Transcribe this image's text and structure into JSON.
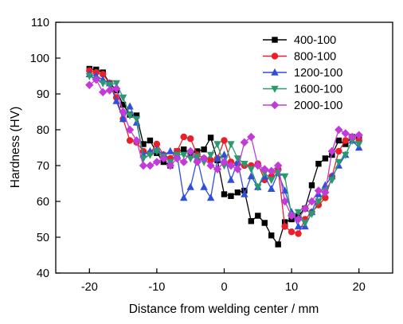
{
  "chart_data": {
    "type": "line",
    "title": "",
    "xlabel": "Distance from welding center / mm",
    "ylabel": "Hardness (HV)",
    "xlim": [
      -25,
      25
    ],
    "ylim": [
      40,
      110
    ],
    "xticks": [
      -20,
      -10,
      0,
      10,
      20
    ],
    "yticks": [
      40,
      50,
      60,
      70,
      80,
      90,
      100,
      110
    ],
    "x_tick_labels": [
      "-20",
      "-10",
      "0",
      "10",
      "20"
    ],
    "y_tick_labels": [
      "40",
      "50",
      "60",
      "70",
      "80",
      "90",
      "100",
      "110"
    ],
    "grid": false,
    "legend_position": "top-right",
    "series": [
      {
        "name": "400-100",
        "color": "#000000",
        "marker": "square",
        "points": [
          [
            -20,
            97
          ],
          [
            -19,
            96.8
          ],
          [
            -18,
            96
          ],
          [
            -17,
            93
          ],
          [
            -16,
            91
          ],
          [
            -15,
            87
          ],
          [
            -14,
            84.2
          ],
          [
            -13,
            84
          ],
          [
            -12,
            76
          ],
          [
            -11,
            77
          ],
          [
            -10,
            73.5
          ],
          [
            -9,
            71
          ],
          [
            -8,
            70
          ],
          [
            -7,
            74
          ],
          [
            -6,
            74.5
          ],
          [
            -5,
            73.5
          ],
          [
            -4,
            74
          ],
          [
            -3,
            74.5
          ],
          [
            -2,
            77.8
          ],
          [
            -1,
            71.5
          ],
          [
            0,
            62
          ],
          [
            1,
            61.5
          ],
          [
            2,
            62.5
          ],
          [
            3,
            63
          ],
          [
            4,
            54.5
          ],
          [
            5,
            56
          ],
          [
            6,
            54
          ],
          [
            7,
            50.5
          ],
          [
            8,
            48
          ],
          [
            9,
            54.2
          ],
          [
            10,
            55
          ],
          [
            11,
            56
          ],
          [
            12,
            58
          ],
          [
            13,
            64.5
          ],
          [
            14,
            70.5
          ],
          [
            15,
            72
          ],
          [
            16,
            73
          ],
          [
            17,
            77
          ],
          [
            18,
            76
          ],
          [
            19,
            78
          ],
          [
            20,
            78
          ]
        ]
      },
      {
        "name": "800-100",
        "color": "#e8202a",
        "marker": "circle",
        "points": [
          [
            -20,
            96.5
          ],
          [
            -19,
            96
          ],
          [
            -18,
            95.5
          ],
          [
            -17,
            93
          ],
          [
            -16,
            89
          ],
          [
            -15,
            83
          ],
          [
            -14,
            77
          ],
          [
            -13,
            76.5
          ],
          [
            -12,
            74
          ],
          [
            -11,
            73.5
          ],
          [
            -10,
            76
          ],
          [
            -9,
            73
          ],
          [
            -8,
            72
          ],
          [
            -7,
            74
          ],
          [
            -6,
            78
          ],
          [
            -5,
            77.5
          ],
          [
            -4,
            73
          ],
          [
            -3,
            72
          ],
          [
            -2,
            71.5
          ],
          [
            -1,
            72
          ],
          [
            0,
            77
          ],
          [
            1,
            71
          ],
          [
            2,
            70.5
          ],
          [
            3,
            70
          ],
          [
            4,
            70
          ],
          [
            5,
            70.5
          ],
          [
            6,
            66
          ],
          [
            7,
            67
          ],
          [
            8,
            69
          ],
          [
            9,
            53
          ],
          [
            10,
            51.5
          ],
          [
            11,
            51
          ],
          [
            12,
            55
          ],
          [
            13,
            57
          ],
          [
            14,
            59
          ],
          [
            15,
            61
          ],
          [
            16,
            67
          ],
          [
            17,
            74
          ],
          [
            18,
            77
          ],
          [
            19,
            78
          ],
          [
            20,
            77
          ]
        ]
      },
      {
        "name": "1200-100",
        "color": "#2f4fd8",
        "marker": "triangle",
        "points": [
          [
            -20,
            95.5
          ],
          [
            -19,
            95
          ],
          [
            -18,
            94
          ],
          [
            -17,
            93
          ],
          [
            -16,
            88
          ],
          [
            -15,
            83
          ],
          [
            -14,
            86.5
          ],
          [
            -13,
            82
          ],
          [
            -12,
            73
          ],
          [
            -11,
            74
          ],
          [
            -10,
            74.5
          ],
          [
            -9,
            73
          ],
          [
            -8,
            74
          ],
          [
            -7,
            73
          ],
          [
            -6,
            61
          ],
          [
            -5,
            64
          ],
          [
            -4,
            72
          ],
          [
            -3,
            64
          ],
          [
            -2,
            61
          ],
          [
            -1,
            72
          ],
          [
            0,
            73
          ],
          [
            1,
            66
          ],
          [
            2,
            71
          ],
          [
            3,
            62
          ],
          [
            4,
            67
          ],
          [
            5,
            64
          ],
          [
            6,
            67
          ],
          [
            7,
            63.5
          ],
          [
            8,
            68
          ],
          [
            9,
            63
          ],
          [
            10,
            57
          ],
          [
            11,
            53
          ],
          [
            12,
            53
          ],
          [
            13,
            57
          ],
          [
            14,
            62
          ],
          [
            15,
            64.5
          ],
          [
            16,
            67
          ],
          [
            17,
            70
          ],
          [
            18,
            73
          ],
          [
            19,
            77
          ],
          [
            20,
            75
          ]
        ]
      },
      {
        "name": "1600-100",
        "color": "#2a9a6e",
        "marker": "triangle-down",
        "points": [
          [
            -20,
            95
          ],
          [
            -19,
            94
          ],
          [
            -18,
            93
          ],
          [
            -17,
            92.5
          ],
          [
            -16,
            93
          ],
          [
            -15,
            89
          ],
          [
            -14,
            84
          ],
          [
            -13,
            83
          ],
          [
            -12,
            72
          ],
          [
            -11,
            73
          ],
          [
            -10,
            74
          ],
          [
            -9,
            72.5
          ],
          [
            -8,
            71
          ],
          [
            -7,
            73
          ],
          [
            -6,
            73
          ],
          [
            -5,
            72
          ],
          [
            -4,
            72.5
          ],
          [
            -3,
            71
          ],
          [
            -2,
            73
          ],
          [
            -1,
            76
          ],
          [
            0,
            70
          ],
          [
            1,
            76
          ],
          [
            2,
            72
          ],
          [
            3,
            70.5
          ],
          [
            4,
            69
          ],
          [
            5,
            64
          ],
          [
            6,
            68
          ],
          [
            7,
            66
          ],
          [
            8,
            68
          ],
          [
            9,
            67
          ],
          [
            10,
            56
          ],
          [
            11,
            57
          ],
          [
            12,
            54
          ],
          [
            13,
            56.5
          ],
          [
            14,
            60
          ],
          [
            15,
            63
          ],
          [
            16,
            66
          ],
          [
            17,
            71
          ],
          [
            18,
            73
          ],
          [
            19,
            77
          ],
          [
            20,
            76
          ]
        ]
      },
      {
        "name": "2000-100",
        "color": "#c23bd9",
        "marker": "diamond",
        "points": [
          [
            -20,
            92.5
          ],
          [
            -19,
            94
          ],
          [
            -18,
            90.5
          ],
          [
            -17,
            91
          ],
          [
            -16,
            91.5
          ],
          [
            -15,
            85
          ],
          [
            -14,
            80
          ],
          [
            -13,
            77
          ],
          [
            -12,
            70
          ],
          [
            -11,
            70
          ],
          [
            -10,
            71
          ],
          [
            -9,
            72
          ],
          [
            -8,
            70
          ],
          [
            -7,
            72
          ],
          [
            -6,
            71
          ],
          [
            -5,
            74
          ],
          [
            -4,
            71
          ],
          [
            -3,
            72
          ],
          [
            -2,
            70
          ],
          [
            -1,
            69
          ],
          [
            0,
            71
          ],
          [
            1,
            70
          ],
          [
            2,
            69
          ],
          [
            3,
            76.5
          ],
          [
            4,
            78
          ],
          [
            5,
            70
          ],
          [
            6,
            69
          ],
          [
            7,
            68.5
          ],
          [
            8,
            70
          ],
          [
            9,
            60
          ],
          [
            10,
            56
          ],
          [
            11,
            55
          ],
          [
            12,
            58
          ],
          [
            13,
            60
          ],
          [
            14,
            63
          ],
          [
            15,
            62.5
          ],
          [
            16,
            74
          ],
          [
            17,
            80
          ],
          [
            18,
            79
          ],
          [
            19,
            78
          ],
          [
            20,
            78.5
          ]
        ]
      }
    ]
  }
}
